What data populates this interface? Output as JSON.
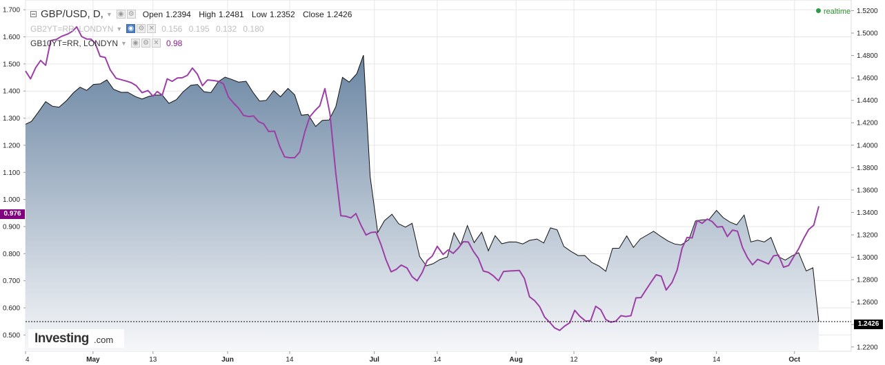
{
  "legend": {
    "main_symbol": "GBP/USD, D,",
    "open_label": "Open",
    "open_value": "1.2394",
    "high_label": "High",
    "high_value": "1.2481",
    "low_label": "Low",
    "low_value": "1.2352",
    "close_label": "Close",
    "close_value": "1.2426",
    "series2_symbol": "GB2YT=RR, LONDYN",
    "series2_values": [
      "0.156",
      "0.195",
      "0.132",
      "0.180"
    ],
    "series3_symbol": "GB10YT=RR, LONDYN",
    "series3_value": "0.98"
  },
  "realtime_label": "realtime",
  "logo": {
    "brand": "Investing",
    "tld": ".com"
  },
  "tags": {
    "left_value": "0.976",
    "right_value": "1.2426"
  },
  "colors": {
    "area_top": "#6b86a3",
    "area_bottom": "#f6f7f9",
    "price_line": "#111111",
    "yield_line": "#9b3ea6",
    "left_tag": "#800080",
    "right_tag": "#000000",
    "grid": "#e6e6e6",
    "realtime": "#2e9b4b",
    "active_toggle": "#4a7fc1"
  },
  "chart_data": {
    "type": "area",
    "x_ticks": [
      {
        "label": "4",
        "x": 0,
        "month": false
      },
      {
        "label": "May",
        "x": 8.05,
        "month": true
      },
      {
        "label": "13",
        "x": 15.2,
        "month": false
      },
      {
        "label": "Jun",
        "x": 24.1,
        "month": true
      },
      {
        "label": "14",
        "x": 31.5,
        "month": false
      },
      {
        "label": "Jul",
        "x": 41.6,
        "month": true
      },
      {
        "label": "14",
        "x": 49.1,
        "month": false
      },
      {
        "label": "Aug",
        "x": 58.5,
        "month": true
      },
      {
        "label": "12",
        "x": 65.4,
        "month": false
      },
      {
        "label": "Sep",
        "x": 75.2,
        "month": true
      },
      {
        "label": "14",
        "x": 82.4,
        "month": false
      },
      {
        "label": "Oct",
        "x": 91.7,
        "month": true
      }
    ],
    "x_range": [
      0,
      94.6
    ],
    "y_left": {
      "ticks": [
        "0.500",
        "0.600",
        "0.700",
        "0.800",
        "0.900",
        "1.000",
        "1.100",
        "1.200",
        "1.300",
        "1.400",
        "1.500",
        "1.600",
        "1.700"
      ],
      "range": [
        0.44,
        1.736
      ]
    },
    "y_right": {
      "ticks": [
        "1.2200",
        "1.2400",
        "1.2600",
        "1.2800",
        "1.3000",
        "1.3200",
        "1.3400",
        "1.3600",
        "1.3800",
        "1.4000",
        "1.4200",
        "1.4400",
        "1.4600",
        "1.4800",
        "1.5000",
        "1.5200"
      ],
      "range": [
        1.2162,
        1.5295
      ]
    },
    "current_price": 1.2426,
    "series": [
      {
        "name": "GBP/USD",
        "axis": "right",
        "points": [
          [
            0,
            1.4187
          ],
          [
            0.7,
            1.4212
          ],
          [
            1.5,
            1.4292
          ],
          [
            2.4,
            1.4388
          ],
          [
            3.2,
            1.4348
          ],
          [
            4.0,
            1.4339
          ],
          [
            4.9,
            1.4398
          ],
          [
            5.7,
            1.4466
          ],
          [
            6.5,
            1.4517
          ],
          [
            7.3,
            1.4489
          ],
          [
            8.1,
            1.4542
          ],
          [
            8.9,
            1.4547
          ],
          [
            9.7,
            1.4583
          ],
          [
            10.5,
            1.4499
          ],
          [
            11.4,
            1.4471
          ],
          [
            12.2,
            1.4472
          ],
          [
            13.1,
            1.4434
          ],
          [
            13.9,
            1.4412
          ],
          [
            14.7,
            1.4435
          ],
          [
            15.5,
            1.4447
          ],
          [
            16.3,
            1.4447
          ],
          [
            17.1,
            1.4373
          ],
          [
            18.0,
            1.4407
          ],
          [
            18.8,
            1.4477
          ],
          [
            19.7,
            1.4534
          ],
          [
            20.5,
            1.4542
          ],
          [
            21.3,
            1.4476
          ],
          [
            22.1,
            1.4469
          ],
          [
            23.0,
            1.4567
          ],
          [
            23.8,
            1.4607
          ],
          [
            24.6,
            1.4587
          ],
          [
            25.4,
            1.4563
          ],
          [
            26.3,
            1.457
          ],
          [
            27.1,
            1.4475
          ],
          [
            27.9,
            1.4394
          ],
          [
            28.7,
            1.44
          ],
          [
            29.6,
            1.4487
          ],
          [
            30.4,
            1.4432
          ],
          [
            31.3,
            1.4506
          ],
          [
            32.1,
            1.4449
          ],
          [
            32.9,
            1.4267
          ],
          [
            33.7,
            1.4274
          ],
          [
            34.6,
            1.4167
          ],
          [
            35.4,
            1.4222
          ],
          [
            36.2,
            1.4225
          ],
          [
            37.0,
            1.4343
          ],
          [
            37.8,
            1.4605
          ],
          [
            38.6,
            1.4563
          ],
          [
            39.5,
            1.4637
          ],
          [
            40.3,
            1.4803
          ],
          [
            41.1,
            1.3721
          ],
          [
            42.0,
            1.3221
          ],
          [
            42.8,
            1.3326
          ],
          [
            43.7,
            1.3384
          ],
          [
            44.5,
            1.3299
          ],
          [
            45.3,
            1.3269
          ],
          [
            46.1,
            1.3303
          ],
          [
            47.0,
            1.3006
          ],
          [
            47.8,
            1.2924
          ],
          [
            48.6,
            1.2943
          ],
          [
            49.4,
            1.2979
          ],
          [
            50.3,
            1.3003
          ],
          [
            51.1,
            1.3218
          ],
          [
            51.9,
            1.3112
          ],
          [
            52.7,
            1.3283
          ],
          [
            53.5,
            1.3131
          ],
          [
            54.4,
            1.3224
          ],
          [
            55.2,
            1.3058
          ],
          [
            56.0,
            1.3193
          ],
          [
            56.8,
            1.3121
          ],
          [
            57.7,
            1.3137
          ],
          [
            58.5,
            1.3136
          ],
          [
            59.3,
            1.3119
          ],
          [
            60.1,
            1.3151
          ],
          [
            61.0,
            1.3163
          ],
          [
            61.8,
            1.3128
          ],
          [
            62.6,
            1.3262
          ],
          [
            63.4,
            1.3245
          ],
          [
            64.2,
            1.3097
          ],
          [
            65.1,
            1.305
          ],
          [
            65.9,
            1.3015
          ],
          [
            66.7,
            1.3016
          ],
          [
            67.5,
            1.2955
          ],
          [
            68.4,
            1.2922
          ],
          [
            69.2,
            1.2875
          ],
          [
            70.0,
            1.308
          ],
          [
            70.8,
            1.3081
          ],
          [
            71.7,
            1.3191
          ],
          [
            72.5,
            1.3088
          ],
          [
            73.3,
            1.3163
          ],
          [
            74.1,
            1.3197
          ],
          [
            74.9,
            1.3232
          ],
          [
            75.8,
            1.3184
          ],
          [
            76.6,
            1.3146
          ],
          [
            77.4,
            1.3119
          ],
          [
            78.2,
            1.311
          ],
          [
            79.1,
            1.3157
          ],
          [
            79.9,
            1.3324
          ],
          [
            80.7,
            1.3334
          ],
          [
            81.5,
            1.3336
          ],
          [
            82.4,
            1.3418
          ],
          [
            83.2,
            1.3354
          ],
          [
            84.0,
            1.3315
          ],
          [
            84.8,
            1.3289
          ],
          [
            85.7,
            1.3377
          ],
          [
            86.5,
            1.3137
          ],
          [
            87.3,
            1.3152
          ],
          [
            88.1,
            1.3137
          ],
          [
            88.9,
            1.3177
          ],
          [
            89.8,
            1.3005
          ],
          [
            90.6,
            1.2975
          ],
          [
            91.4,
            1.3012
          ],
          [
            92.2,
            1.3041
          ],
          [
            93.1,
            1.2878
          ],
          [
            93.9,
            1.2906
          ],
          [
            94.6,
            1.2426
          ]
        ]
      },
      {
        "name": "GB10YT=RR, LONDYN",
        "axis": "left",
        "points": [
          [
            0,
            1.474
          ],
          [
            0.6,
            1.445
          ],
          [
            1.2,
            1.486
          ],
          [
            1.8,
            1.513
          ],
          [
            2.4,
            1.495
          ],
          [
            3.0,
            1.586
          ],
          [
            3.7,
            1.591
          ],
          [
            4.3,
            1.602
          ],
          [
            5.0,
            1.61
          ],
          [
            5.6,
            1.621
          ],
          [
            6.1,
            1.637
          ],
          [
            6.7,
            1.601
          ],
          [
            7.3,
            1.592
          ],
          [
            7.8,
            1.592
          ],
          [
            8.3,
            1.577
          ],
          [
            8.9,
            1.528
          ],
          [
            9.5,
            1.524
          ],
          [
            10.1,
            1.478
          ],
          [
            10.8,
            1.447
          ],
          [
            11.4,
            1.442
          ],
          [
            12.0,
            1.437
          ],
          [
            12.6,
            1.431
          ],
          [
            13.2,
            1.42
          ],
          [
            13.9,
            1.394
          ],
          [
            14.6,
            1.402
          ],
          [
            15.2,
            1.381
          ],
          [
            15.7,
            1.398
          ],
          [
            16.3,
            1.385
          ],
          [
            16.9,
            1.445
          ],
          [
            17.5,
            1.436
          ],
          [
            18.1,
            1.448
          ],
          [
            18.7,
            1.449
          ],
          [
            19.3,
            1.458
          ],
          [
            19.9,
            1.485
          ],
          [
            20.5,
            1.462
          ],
          [
            21.1,
            1.42
          ],
          [
            21.7,
            1.441
          ],
          [
            22.4,
            1.439
          ],
          [
            23.0,
            1.436
          ],
          [
            23.6,
            1.427
          ],
          [
            24.2,
            1.378
          ],
          [
            24.8,
            1.356
          ],
          [
            25.4,
            1.337
          ],
          [
            26.0,
            1.31
          ],
          [
            26.6,
            1.306
          ],
          [
            27.2,
            1.308
          ],
          [
            27.8,
            1.287
          ],
          [
            28.4,
            1.279
          ],
          [
            29.0,
            1.251
          ],
          [
            29.7,
            1.252
          ],
          [
            30.3,
            1.197
          ],
          [
            30.9,
            1.157
          ],
          [
            31.5,
            1.154
          ],
          [
            32.1,
            1.154
          ],
          [
            32.7,
            1.175
          ],
          [
            33.3,
            1.248
          ],
          [
            33.9,
            1.305
          ],
          [
            34.5,
            1.327
          ],
          [
            35.1,
            1.346
          ],
          [
            35.7,
            1.409
          ],
          [
            36.3,
            1.317
          ],
          [
            37.0,
            1.097
          ],
          [
            37.6,
            0.94
          ],
          [
            38.2,
            0.938
          ],
          [
            38.8,
            0.932
          ],
          [
            39.4,
            0.948
          ],
          [
            40.0,
            0.905
          ],
          [
            40.6,
            0.869
          ],
          [
            41.2,
            0.878
          ],
          [
            41.8,
            0.88
          ],
          [
            42.4,
            0.833
          ],
          [
            43.0,
            0.777
          ],
          [
            43.6,
            0.733
          ],
          [
            44.2,
            0.742
          ],
          [
            44.8,
            0.758
          ],
          [
            45.5,
            0.747
          ],
          [
            46.1,
            0.715
          ],
          [
            46.7,
            0.7
          ],
          [
            47.3,
            0.73
          ],
          [
            47.9,
            0.775
          ],
          [
            48.5,
            0.791
          ],
          [
            49.1,
            0.827
          ],
          [
            49.8,
            0.797
          ],
          [
            50.4,
            0.814
          ],
          [
            51.0,
            0.801
          ],
          [
            51.6,
            0.82
          ],
          [
            52.2,
            0.844
          ],
          [
            52.8,
            0.843
          ],
          [
            53.4,
            0.809
          ],
          [
            54.0,
            0.783
          ],
          [
            54.6,
            0.736
          ],
          [
            55.2,
            0.731
          ],
          [
            55.8,
            0.718
          ],
          [
            56.4,
            0.7
          ],
          [
            57.0,
            0.734
          ],
          [
            57.7,
            0.736
          ],
          [
            58.3,
            0.737
          ],
          [
            58.9,
            0.738
          ],
          [
            59.5,
            0.708
          ],
          [
            60.1,
            0.641
          ],
          [
            60.7,
            0.627
          ],
          [
            61.3,
            0.605
          ],
          [
            61.9,
            0.566
          ],
          [
            62.5,
            0.547
          ],
          [
            63.1,
            0.526
          ],
          [
            63.7,
            0.517
          ],
          [
            64.3,
            0.533
          ],
          [
            64.9,
            0.545
          ],
          [
            65.5,
            0.591
          ],
          [
            66.1,
            0.569
          ],
          [
            66.8,
            0.551
          ],
          [
            67.4,
            0.553
          ],
          [
            68.0,
            0.606
          ],
          [
            68.6,
            0.593
          ],
          [
            69.2,
            0.557
          ],
          [
            69.8,
            0.547
          ],
          [
            70.4,
            0.551
          ],
          [
            71.0,
            0.571
          ],
          [
            71.6,
            0.568
          ],
          [
            72.2,
            0.571
          ],
          [
            72.8,
            0.637
          ],
          [
            73.4,
            0.638
          ],
          [
            74.0,
            0.667
          ],
          [
            74.6,
            0.695
          ],
          [
            75.2,
            0.722
          ],
          [
            75.8,
            0.717
          ],
          [
            76.4,
            0.666
          ],
          [
            77.1,
            0.694
          ],
          [
            77.7,
            0.739
          ],
          [
            78.3,
            0.82
          ],
          [
            78.9,
            0.86
          ],
          [
            79.5,
            0.858
          ],
          [
            80.1,
            0.922
          ],
          [
            80.7,
            0.912
          ],
          [
            81.3,
            0.928
          ],
          [
            81.9,
            0.918
          ],
          [
            82.5,
            0.898
          ],
          [
            83.1,
            0.9
          ],
          [
            83.7,
            0.863
          ],
          [
            84.3,
            0.887
          ],
          [
            84.9,
            0.883
          ],
          [
            85.5,
            0.823
          ],
          [
            86.1,
            0.785
          ],
          [
            86.7,
            0.759
          ],
          [
            87.3,
            0.779
          ],
          [
            88.0,
            0.77
          ],
          [
            88.6,
            0.762
          ],
          [
            89.2,
            0.792
          ],
          [
            89.8,
            0.795
          ],
          [
            90.4,
            0.75
          ],
          [
            91.0,
            0.756
          ],
          [
            91.6,
            0.788
          ],
          [
            92.2,
            0.818
          ],
          [
            92.8,
            0.856
          ],
          [
            93.4,
            0.889
          ],
          [
            94.0,
            0.905
          ],
          [
            94.6,
            0.975
          ]
        ]
      }
    ]
  }
}
